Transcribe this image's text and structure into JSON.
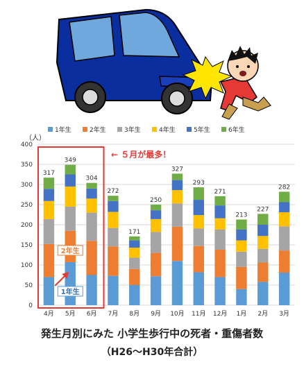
{
  "chart_data": {
    "type": "bar",
    "stacked": true,
    "categories": [
      "4月",
      "5月",
      "6月",
      "7月",
      "8月",
      "9月",
      "10月",
      "11月",
      "12月",
      "1月",
      "2月",
      "3月"
    ],
    "series": [
      {
        "name": "1年生",
        "color": "#5B9BD5",
        "values": [
          70,
          107,
          75,
          73,
          50,
          72,
          110,
          82,
          70,
          40,
          58,
          81
        ]
      },
      {
        "name": "2年生",
        "color": "#ED7D31",
        "values": [
          82,
          78,
          85,
          73,
          40,
          58,
          85,
          65,
          68,
          55,
          48,
          55
        ]
      },
      {
        "name": "3年生",
        "color": "#A5A5A5",
        "values": [
          62,
          60,
          70,
          46,
          28,
          52,
          58,
          44,
          50,
          38,
          34,
          60
        ]
      },
      {
        "name": "4年生",
        "color": "#FFC000",
        "values": [
          45,
          50,
          35,
          40,
          25,
          32,
          33,
          33,
          28,
          28,
          32,
          35
        ]
      },
      {
        "name": "5年生",
        "color": "#4472C4",
        "values": [
          30,
          30,
          25,
          27,
          18,
          22,
          25,
          38,
          32,
          27,
          28,
          25
        ]
      },
      {
        "name": "6年生",
        "color": "#70AD47",
        "values": [
          28,
          24,
          14,
          13,
          10,
          14,
          16,
          31,
          23,
          25,
          27,
          26
        ]
      }
    ],
    "totals": [
      317,
      349,
      304,
      272,
      171,
      250,
      327,
      293,
      271,
      213,
      227,
      282
    ],
    "ylim": [
      0,
      400
    ],
    "yticks": [
      0,
      50,
      100,
      150,
      200,
      250,
      300,
      350,
      400
    ],
    "ylabel": "（人）",
    "legend_position": "top",
    "annotation": "← ５月が最多！",
    "label_2nd": "2年生",
    "label_1st": "1年生",
    "highlight_color": "#E53935",
    "grid": true
  },
  "caption": {
    "line1": "発生月別にみた 小学生歩行中の死者・重傷者数",
    "line2": "（H26～H30年合計）"
  }
}
